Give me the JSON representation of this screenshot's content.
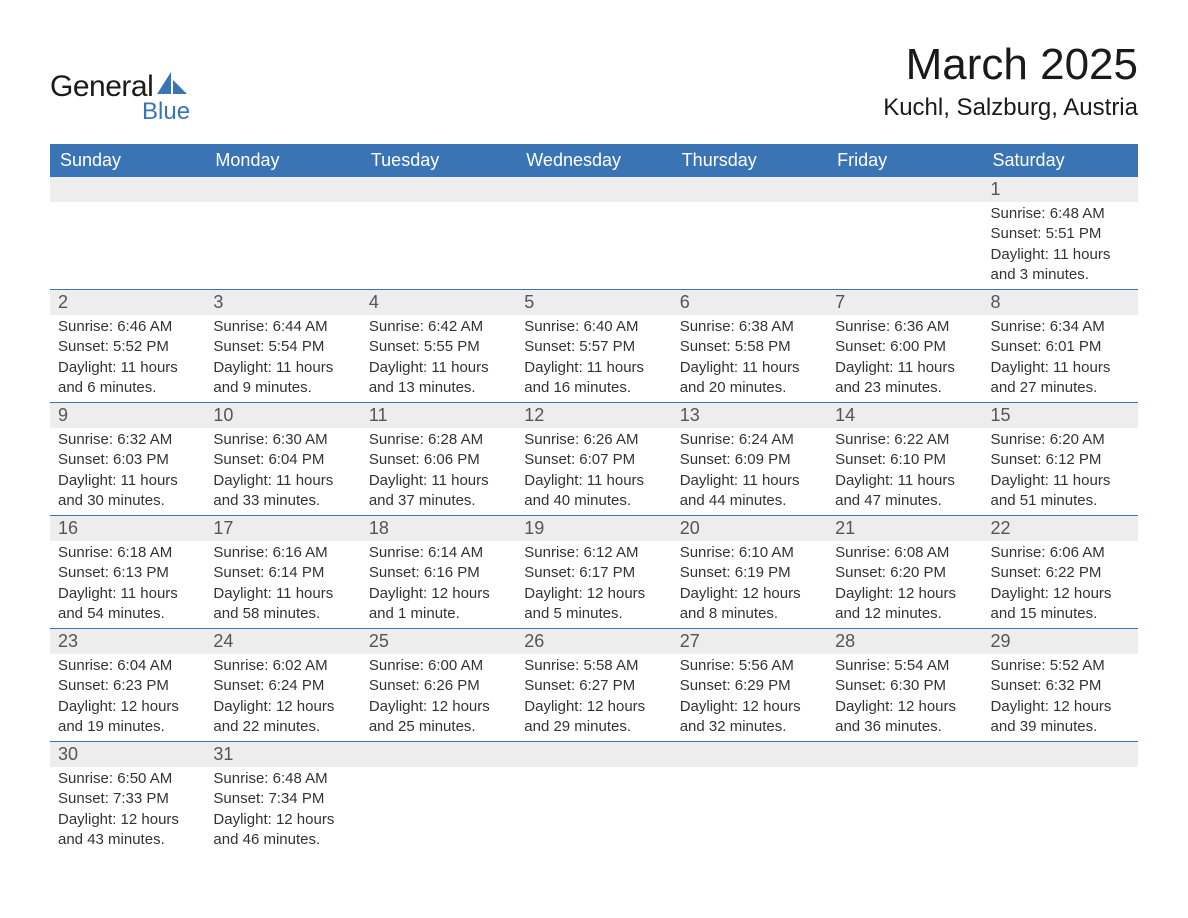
{
  "logo": {
    "general": "General",
    "blue": "Blue"
  },
  "title": "March 2025",
  "location": "Kuchl, Salzburg, Austria",
  "colors": {
    "header_bg": "#3a74b4",
    "header_text": "#ffffff",
    "daynum_bg": "#ededed",
    "daynum_text": "#555555",
    "body_text": "#333333",
    "row_border": "#3a74b4",
    "logo_blue": "#3a74b4",
    "background": "#ffffff"
  },
  "typography": {
    "title_fontsize": 44,
    "location_fontsize": 24,
    "header_fontsize": 18,
    "daynum_fontsize": 18,
    "content_fontsize": 15
  },
  "weekdays": [
    "Sunday",
    "Monday",
    "Tuesday",
    "Wednesday",
    "Thursday",
    "Friday",
    "Saturday"
  ],
  "weeks": [
    [
      null,
      null,
      null,
      null,
      null,
      null,
      {
        "n": "1",
        "sr": "Sunrise: 6:48 AM",
        "ss": "Sunset: 5:51 PM",
        "d1": "Daylight: 11 hours",
        "d2": "and 3 minutes."
      }
    ],
    [
      {
        "n": "2",
        "sr": "Sunrise: 6:46 AM",
        "ss": "Sunset: 5:52 PM",
        "d1": "Daylight: 11 hours",
        "d2": "and 6 minutes."
      },
      {
        "n": "3",
        "sr": "Sunrise: 6:44 AM",
        "ss": "Sunset: 5:54 PM",
        "d1": "Daylight: 11 hours",
        "d2": "and 9 minutes."
      },
      {
        "n": "4",
        "sr": "Sunrise: 6:42 AM",
        "ss": "Sunset: 5:55 PM",
        "d1": "Daylight: 11 hours",
        "d2": "and 13 minutes."
      },
      {
        "n": "5",
        "sr": "Sunrise: 6:40 AM",
        "ss": "Sunset: 5:57 PM",
        "d1": "Daylight: 11 hours",
        "d2": "and 16 minutes."
      },
      {
        "n": "6",
        "sr": "Sunrise: 6:38 AM",
        "ss": "Sunset: 5:58 PM",
        "d1": "Daylight: 11 hours",
        "d2": "and 20 minutes."
      },
      {
        "n": "7",
        "sr": "Sunrise: 6:36 AM",
        "ss": "Sunset: 6:00 PM",
        "d1": "Daylight: 11 hours",
        "d2": "and 23 minutes."
      },
      {
        "n": "8",
        "sr": "Sunrise: 6:34 AM",
        "ss": "Sunset: 6:01 PM",
        "d1": "Daylight: 11 hours",
        "d2": "and 27 minutes."
      }
    ],
    [
      {
        "n": "9",
        "sr": "Sunrise: 6:32 AM",
        "ss": "Sunset: 6:03 PM",
        "d1": "Daylight: 11 hours",
        "d2": "and 30 minutes."
      },
      {
        "n": "10",
        "sr": "Sunrise: 6:30 AM",
        "ss": "Sunset: 6:04 PM",
        "d1": "Daylight: 11 hours",
        "d2": "and 33 minutes."
      },
      {
        "n": "11",
        "sr": "Sunrise: 6:28 AM",
        "ss": "Sunset: 6:06 PM",
        "d1": "Daylight: 11 hours",
        "d2": "and 37 minutes."
      },
      {
        "n": "12",
        "sr": "Sunrise: 6:26 AM",
        "ss": "Sunset: 6:07 PM",
        "d1": "Daylight: 11 hours",
        "d2": "and 40 minutes."
      },
      {
        "n": "13",
        "sr": "Sunrise: 6:24 AM",
        "ss": "Sunset: 6:09 PM",
        "d1": "Daylight: 11 hours",
        "d2": "and 44 minutes."
      },
      {
        "n": "14",
        "sr": "Sunrise: 6:22 AM",
        "ss": "Sunset: 6:10 PM",
        "d1": "Daylight: 11 hours",
        "d2": "and 47 minutes."
      },
      {
        "n": "15",
        "sr": "Sunrise: 6:20 AM",
        "ss": "Sunset: 6:12 PM",
        "d1": "Daylight: 11 hours",
        "d2": "and 51 minutes."
      }
    ],
    [
      {
        "n": "16",
        "sr": "Sunrise: 6:18 AM",
        "ss": "Sunset: 6:13 PM",
        "d1": "Daylight: 11 hours",
        "d2": "and 54 minutes."
      },
      {
        "n": "17",
        "sr": "Sunrise: 6:16 AM",
        "ss": "Sunset: 6:14 PM",
        "d1": "Daylight: 11 hours",
        "d2": "and 58 minutes."
      },
      {
        "n": "18",
        "sr": "Sunrise: 6:14 AM",
        "ss": "Sunset: 6:16 PM",
        "d1": "Daylight: 12 hours",
        "d2": "and 1 minute."
      },
      {
        "n": "19",
        "sr": "Sunrise: 6:12 AM",
        "ss": "Sunset: 6:17 PM",
        "d1": "Daylight: 12 hours",
        "d2": "and 5 minutes."
      },
      {
        "n": "20",
        "sr": "Sunrise: 6:10 AM",
        "ss": "Sunset: 6:19 PM",
        "d1": "Daylight: 12 hours",
        "d2": "and 8 minutes."
      },
      {
        "n": "21",
        "sr": "Sunrise: 6:08 AM",
        "ss": "Sunset: 6:20 PM",
        "d1": "Daylight: 12 hours",
        "d2": "and 12 minutes."
      },
      {
        "n": "22",
        "sr": "Sunrise: 6:06 AM",
        "ss": "Sunset: 6:22 PM",
        "d1": "Daylight: 12 hours",
        "d2": "and 15 minutes."
      }
    ],
    [
      {
        "n": "23",
        "sr": "Sunrise: 6:04 AM",
        "ss": "Sunset: 6:23 PM",
        "d1": "Daylight: 12 hours",
        "d2": "and 19 minutes."
      },
      {
        "n": "24",
        "sr": "Sunrise: 6:02 AM",
        "ss": "Sunset: 6:24 PM",
        "d1": "Daylight: 12 hours",
        "d2": "and 22 minutes."
      },
      {
        "n": "25",
        "sr": "Sunrise: 6:00 AM",
        "ss": "Sunset: 6:26 PM",
        "d1": "Daylight: 12 hours",
        "d2": "and 25 minutes."
      },
      {
        "n": "26",
        "sr": "Sunrise: 5:58 AM",
        "ss": "Sunset: 6:27 PM",
        "d1": "Daylight: 12 hours",
        "d2": "and 29 minutes."
      },
      {
        "n": "27",
        "sr": "Sunrise: 5:56 AM",
        "ss": "Sunset: 6:29 PM",
        "d1": "Daylight: 12 hours",
        "d2": "and 32 minutes."
      },
      {
        "n": "28",
        "sr": "Sunrise: 5:54 AM",
        "ss": "Sunset: 6:30 PM",
        "d1": "Daylight: 12 hours",
        "d2": "and 36 minutes."
      },
      {
        "n": "29",
        "sr": "Sunrise: 5:52 AM",
        "ss": "Sunset: 6:32 PM",
        "d1": "Daylight: 12 hours",
        "d2": "and 39 minutes."
      }
    ],
    [
      {
        "n": "30",
        "sr": "Sunrise: 6:50 AM",
        "ss": "Sunset: 7:33 PM",
        "d1": "Daylight: 12 hours",
        "d2": "and 43 minutes."
      },
      {
        "n": "31",
        "sr": "Sunrise: 6:48 AM",
        "ss": "Sunset: 7:34 PM",
        "d1": "Daylight: 12 hours",
        "d2": "and 46 minutes."
      },
      null,
      null,
      null,
      null,
      null
    ]
  ]
}
